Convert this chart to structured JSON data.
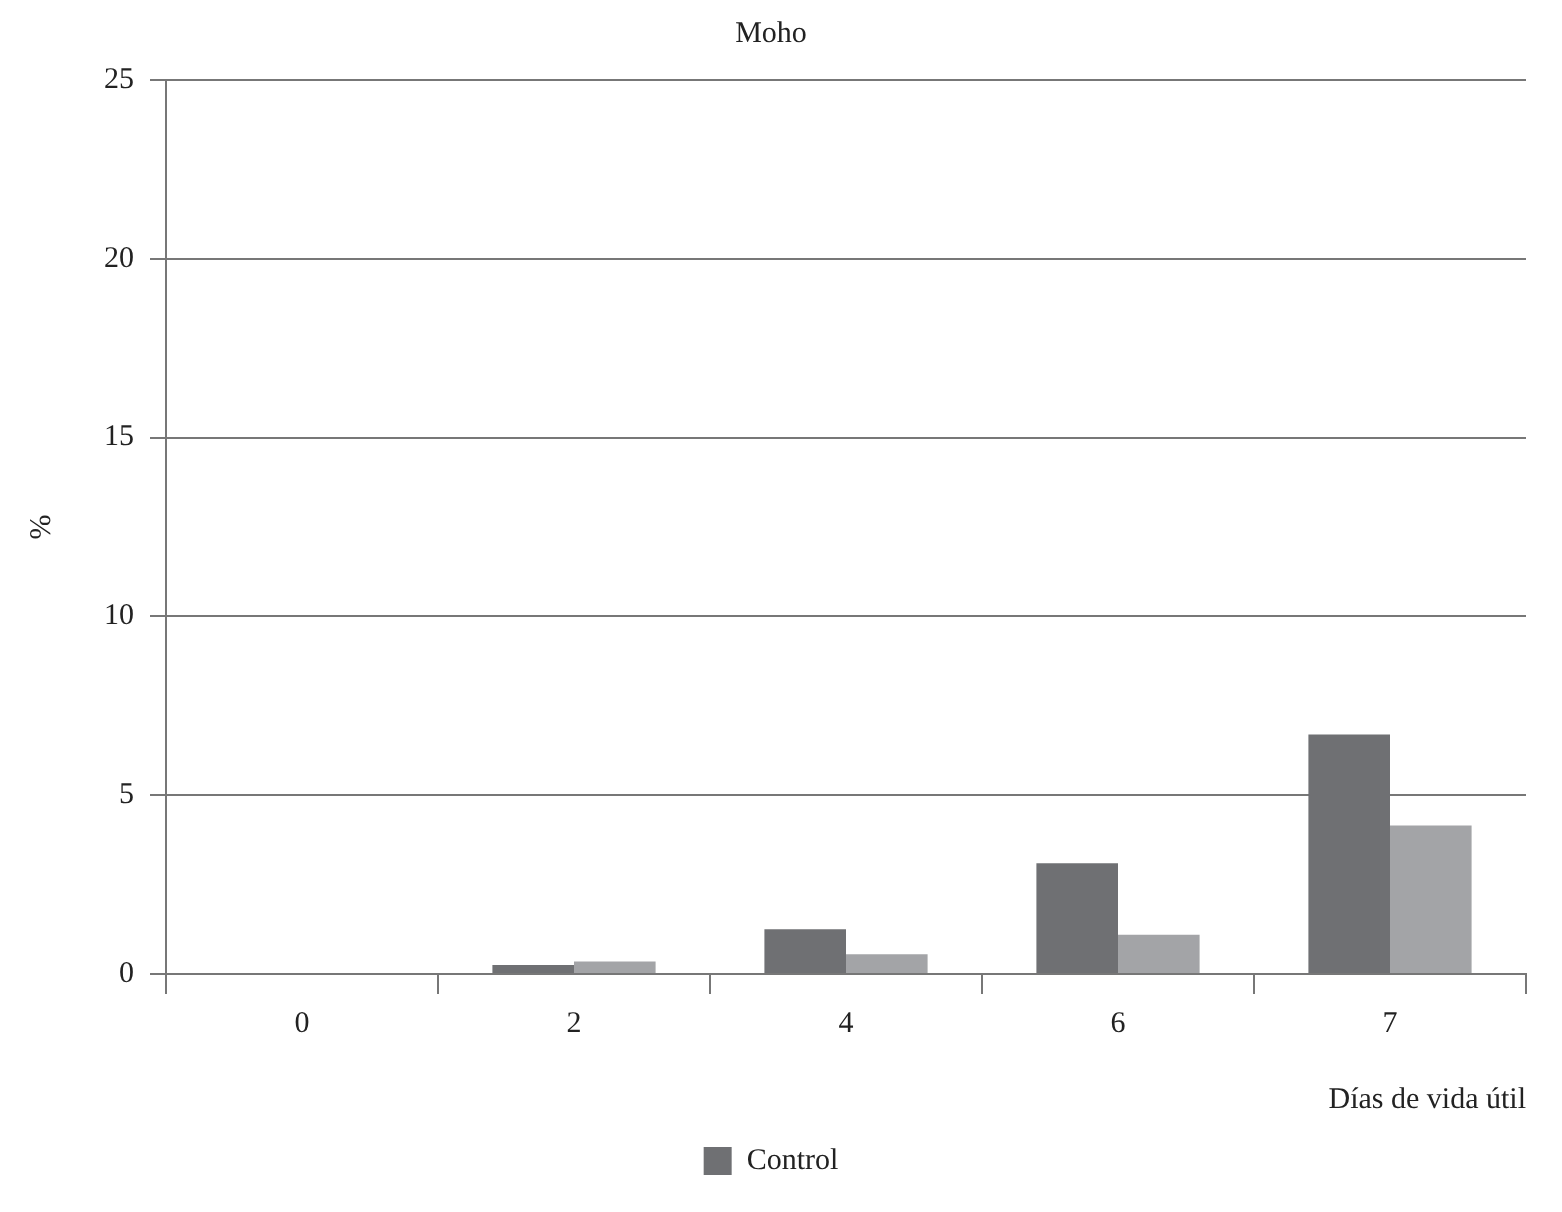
{
  "chart_data": {
    "type": "bar",
    "title": "Moho",
    "xlabel": "Días de vida útil",
    "ylabel": "%",
    "categories": [
      "0",
      "2",
      "4",
      "6",
      "7"
    ],
    "series": [
      {
        "name": "Control",
        "color": "#6f7073",
        "values": [
          0,
          0.25,
          1.25,
          3.1,
          6.7
        ]
      },
      {
        "color": "#a3a4a7",
        "values": [
          0,
          0.35,
          0.55,
          1.1,
          4.15
        ]
      }
    ],
    "ylim": [
      0,
      25
    ],
    "yticks": [
      0,
      5,
      10,
      15,
      20,
      25
    ],
    "grid": "y",
    "legend": "bottom"
  }
}
